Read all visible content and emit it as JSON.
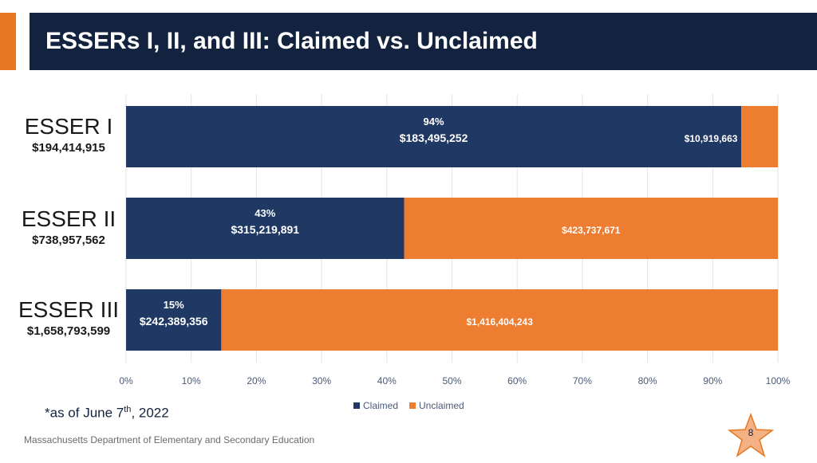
{
  "header": {
    "title": "ESSERs I, II, and III: Claimed vs. Unclaimed"
  },
  "rows": [
    {
      "name": "ESSER I",
      "total": "$194,414,915"
    },
    {
      "name": "ESSER II",
      "total": "$738,957,562"
    },
    {
      "name": "ESSER III",
      "total": "$1,658,793,599"
    }
  ],
  "chart_data": {
    "type": "bar",
    "orientation": "horizontal",
    "stacked": true,
    "normalized_percent": true,
    "categories": [
      "ESSER I",
      "ESSER II",
      "ESSER III"
    ],
    "series": [
      {
        "name": "Claimed",
        "color": "#1f3864",
        "percent": [
          94,
          43,
          15
        ],
        "labels": [
          "$183,495,252",
          "$315,219,891",
          "$242,389,356"
        ]
      },
      {
        "name": "Unclaimed",
        "color": "#ed7d31",
        "labels": [
          "$10,919,663",
          "$423,737,671",
          "$1,416,404,243"
        ]
      }
    ],
    "claimed_fraction": [
      0.9438,
      0.4266,
      0.1461
    ],
    "xlim": [
      0,
      100
    ],
    "x_ticks": [
      "0%",
      "10%",
      "20%",
      "30%",
      "40%",
      "50%",
      "60%",
      "70%",
      "80%",
      "90%",
      "100%"
    ],
    "grid": true,
    "legend_position": "bottom"
  },
  "legend": {
    "claimed": "Claimed",
    "unclaimed": "Unclaimed"
  },
  "footnote": {
    "prefix": "*as of June 7",
    "sup": "th",
    "suffix": ", 2022"
  },
  "footer": {
    "org": "Massachusetts Department of Elementary and Secondary Education"
  },
  "page_number": "8",
  "colors": {
    "header_bg": "#13233f",
    "accent": "#e87722",
    "claimed": "#1f3864",
    "unclaimed": "#ed7d31",
    "star": "#f4b183"
  }
}
